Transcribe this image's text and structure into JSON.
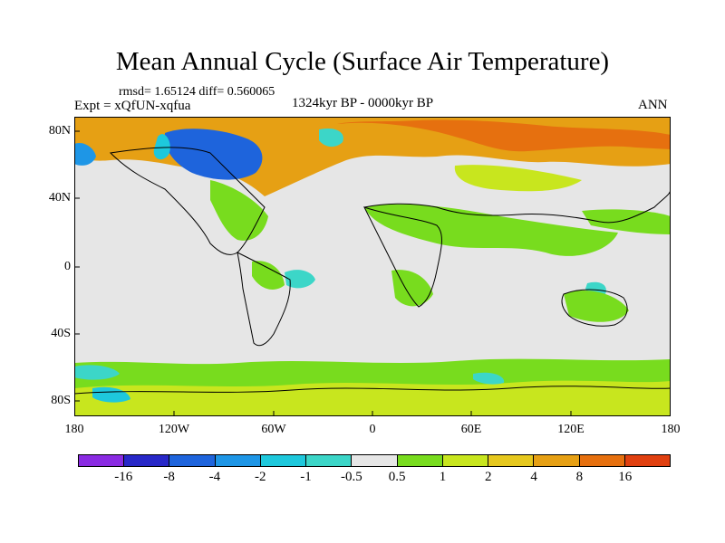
{
  "title": "Mean Annual Cycle (Surface Air Temperature)",
  "stats": "rmsd= 1.65124 diff= 0.560065",
  "experiment": "Expt = xQfUN-xqfua",
  "period": "1324kyr BP - 0000kyr BP",
  "season": "ANN",
  "lat_labels": [
    "80N",
    "40N",
    "0",
    "40S",
    "80S"
  ],
  "lon_labels": [
    "180",
    "120W",
    "60W",
    "0",
    "60E",
    "120E",
    "180"
  ],
  "colorbar": {
    "colors": [
      "#8a2be2",
      "#2828c8",
      "#1e64dc",
      "#1e96e6",
      "#1ec8dc",
      "#3cd6c8",
      "#e6e6e6",
      "#78dc1e",
      "#c8e61e",
      "#e6c81e",
      "#e6a014",
      "#e6700f",
      "#e04010"
    ],
    "labels": [
      "-16",
      "-8",
      "-4",
      "-2",
      "-1",
      "-0.5",
      "0.5",
      "1",
      "2",
      "4",
      "8",
      "16"
    ]
  }
}
